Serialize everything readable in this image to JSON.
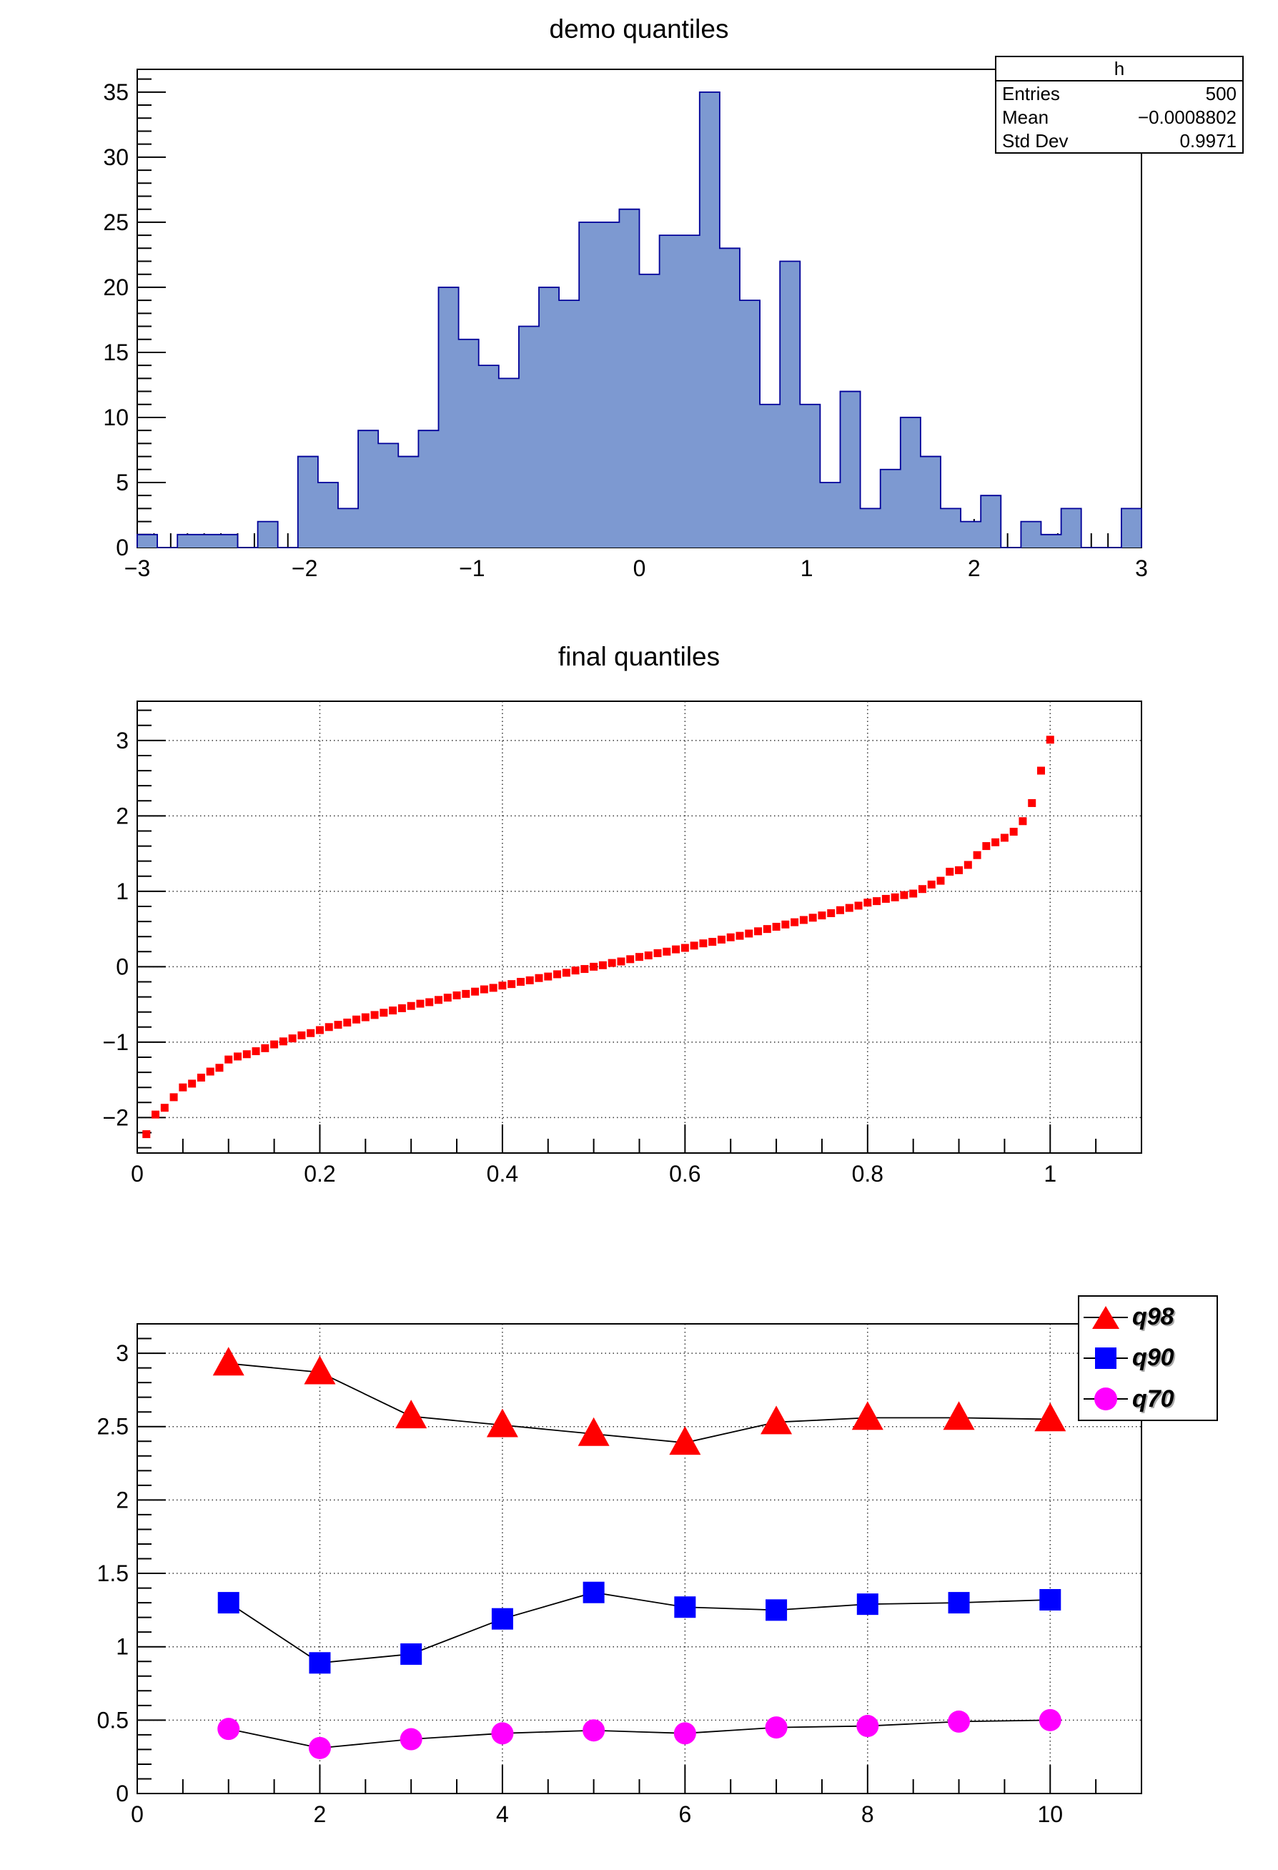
{
  "page": {
    "background": "#ffffff"
  },
  "panel1": {
    "title": "demo quantiles",
    "stats": {
      "title": "h",
      "rows": [
        {
          "label": "Entries",
          "value": "500"
        },
        {
          "label": "Mean",
          "value": "−0.0008802"
        },
        {
          "label": "Std Dev",
          "value": "0.9971"
        }
      ]
    }
  },
  "panel2": {
    "title": "final quantiles"
  },
  "panel3": {
    "legend": [
      {
        "label": "q98",
        "marker": "triangle",
        "color": "#ff0000"
      },
      {
        "label": "q90",
        "marker": "square",
        "color": "#0000ff"
      },
      {
        "label": "q70",
        "marker": "circle",
        "color": "#ff00ff"
      }
    ]
  },
  "chart_data": [
    {
      "type": "bar",
      "title": "demo quantiles",
      "xlim": [
        -3,
        3
      ],
      "ylim": [
        0,
        36.75
      ],
      "bins": 50,
      "bin_width": 0.12,
      "values": [
        1,
        0,
        1,
        1,
        1,
        0,
        2,
        0,
        7,
        5,
        3,
        9,
        8,
        7,
        9,
        20,
        16,
        14,
        13,
        17,
        20,
        19,
        25,
        25,
        26,
        21,
        24,
        24,
        35,
        23,
        19,
        11,
        22,
        11,
        5,
        12,
        3,
        6,
        10,
        7,
        3,
        2,
        4,
        0,
        2,
        1,
        3,
        0,
        0,
        3
      ],
      "entries_total": 500,
      "xticks": [
        {
          "v": -3,
          "t": "−3"
        },
        {
          "v": -2,
          "t": "−2"
        },
        {
          "v": -1,
          "t": "−1"
        },
        {
          "v": 0,
          "t": "0"
        },
        {
          "v": 1,
          "t": "1"
        },
        {
          "v": 2,
          "t": "2"
        },
        {
          "v": 3,
          "t": "3"
        }
      ],
      "yticks": [
        {
          "v": 0,
          "t": "0"
        },
        {
          "v": 5,
          "t": "5"
        },
        {
          "v": 10,
          "t": "10"
        },
        {
          "v": 15,
          "t": "15"
        },
        {
          "v": 20,
          "t": "20"
        },
        {
          "v": 25,
          "t": "25"
        },
        {
          "v": 30,
          "t": "30"
        },
        {
          "v": 35,
          "t": "35"
        }
      ],
      "grid": false,
      "fill": "#7d99d1",
      "stroke": "#000099"
    },
    {
      "type": "scatter",
      "title": "final quantiles",
      "xlim": [
        0,
        1.1
      ],
      "ylim": [
        -2.47,
        3.52
      ],
      "marker": "square",
      "marker_size": 11,
      "color": "#ff0000",
      "x": [
        0.01,
        0.02,
        0.03,
        0.04,
        0.05,
        0.06,
        0.07,
        0.08,
        0.09,
        0.1,
        0.11,
        0.12,
        0.13,
        0.14,
        0.15,
        0.16,
        0.17,
        0.18,
        0.19,
        0.2,
        0.21,
        0.22,
        0.23,
        0.24,
        0.25,
        0.26,
        0.27,
        0.28,
        0.29,
        0.3,
        0.31,
        0.32,
        0.33,
        0.34,
        0.35,
        0.36,
        0.37,
        0.38,
        0.39,
        0.4,
        0.41,
        0.42,
        0.43,
        0.44,
        0.45,
        0.46,
        0.47,
        0.48,
        0.49,
        0.5,
        0.51,
        0.52,
        0.53,
        0.54,
        0.55,
        0.56,
        0.57,
        0.58,
        0.59,
        0.6,
        0.61,
        0.62,
        0.63,
        0.64,
        0.65,
        0.66,
        0.67,
        0.68,
        0.69,
        0.7,
        0.71,
        0.72,
        0.73,
        0.74,
        0.75,
        0.76,
        0.77,
        0.78,
        0.79,
        0.8,
        0.81,
        0.82,
        0.83,
        0.84,
        0.85,
        0.86,
        0.87,
        0.88,
        0.89,
        0.9,
        0.91,
        0.92,
        0.93,
        0.94,
        0.95,
        0.96,
        0.97,
        0.98,
        0.99,
        1.0
      ],
      "y": [
        -2.22,
        -1.96,
        -1.87,
        -1.73,
        -1.6,
        -1.55,
        -1.47,
        -1.39,
        -1.34,
        -1.23,
        -1.19,
        -1.16,
        -1.12,
        -1.08,
        -1.03,
        -0.99,
        -0.95,
        -0.91,
        -0.88,
        -0.84,
        -0.8,
        -0.77,
        -0.74,
        -0.7,
        -0.67,
        -0.64,
        -0.61,
        -0.58,
        -0.55,
        -0.52,
        -0.49,
        -0.47,
        -0.44,
        -0.41,
        -0.38,
        -0.36,
        -0.33,
        -0.3,
        -0.28,
        -0.25,
        -0.23,
        -0.2,
        -0.18,
        -0.15,
        -0.13,
        -0.1,
        -0.08,
        -0.05,
        -0.03,
        0.0,
        0.02,
        0.05,
        0.07,
        0.1,
        0.13,
        0.15,
        0.18,
        0.2,
        0.23,
        0.25,
        0.28,
        0.31,
        0.33,
        0.36,
        0.39,
        0.41,
        0.44,
        0.47,
        0.5,
        0.53,
        0.56,
        0.59,
        0.62,
        0.65,
        0.68,
        0.71,
        0.75,
        0.78,
        0.81,
        0.85,
        0.87,
        0.9,
        0.92,
        0.95,
        0.97,
        1.03,
        1.09,
        1.14,
        1.26,
        1.28,
        1.35,
        1.48,
        1.6,
        1.65,
        1.71,
        1.79,
        1.93,
        2.17,
        2.6,
        3.01
      ],
      "xticks": [
        {
          "v": 0,
          "t": "0"
        },
        {
          "v": 0.2,
          "t": "0.2"
        },
        {
          "v": 0.4,
          "t": "0.4"
        },
        {
          "v": 0.6,
          "t": "0.6"
        },
        {
          "v": 0.8,
          "t": "0.8"
        },
        {
          "v": 1,
          "t": "1"
        }
      ],
      "yticks": [
        {
          "v": -2,
          "t": "−2"
        },
        {
          "v": -1,
          "t": "−1"
        },
        {
          "v": 0,
          "t": "0"
        },
        {
          "v": 1,
          "t": "1"
        },
        {
          "v": 2,
          "t": "2"
        },
        {
          "v": 3,
          "t": "3"
        }
      ],
      "grid": true
    },
    {
      "type": "line",
      "title": "",
      "xlim": [
        0,
        11
      ],
      "ylim": [
        0,
        3.2
      ],
      "x": [
        1,
        2,
        3,
        4,
        5,
        6,
        7,
        8,
        9,
        10
      ],
      "series": [
        {
          "name": "q98",
          "marker": "triangle",
          "color": "#ff0000",
          "values": [
            2.93,
            2.87,
            2.57,
            2.51,
            2.45,
            2.39,
            2.53,
            2.56,
            2.56,
            2.55
          ]
        },
        {
          "name": "q90",
          "marker": "square",
          "color": "#0000ff",
          "values": [
            1.3,
            0.89,
            0.95,
            1.19,
            1.37,
            1.27,
            1.25,
            1.29,
            1.3,
            1.32
          ]
        },
        {
          "name": "q70",
          "marker": "circle",
          "color": "#ff00ff",
          "values": [
            0.44,
            0.31,
            0.37,
            0.41,
            0.43,
            0.41,
            0.45,
            0.46,
            0.49,
            0.5
          ]
        }
      ],
      "xticks": [
        {
          "v": 0,
          "t": "0"
        },
        {
          "v": 2,
          "t": "2"
        },
        {
          "v": 4,
          "t": "4"
        },
        {
          "v": 6,
          "t": "6"
        },
        {
          "v": 8,
          "t": "8"
        },
        {
          "v": 10,
          "t": "10"
        }
      ],
      "yticks": [
        {
          "v": 0,
          "t": "0"
        },
        {
          "v": 0.5,
          "t": "0.5"
        },
        {
          "v": 1,
          "t": "1"
        },
        {
          "v": 1.5,
          "t": "1.5"
        },
        {
          "v": 2,
          "t": "2"
        },
        {
          "v": 2.5,
          "t": "2.5"
        },
        {
          "v": 3,
          "t": "3"
        }
      ],
      "grid": true,
      "legend_position": "top-right"
    }
  ]
}
